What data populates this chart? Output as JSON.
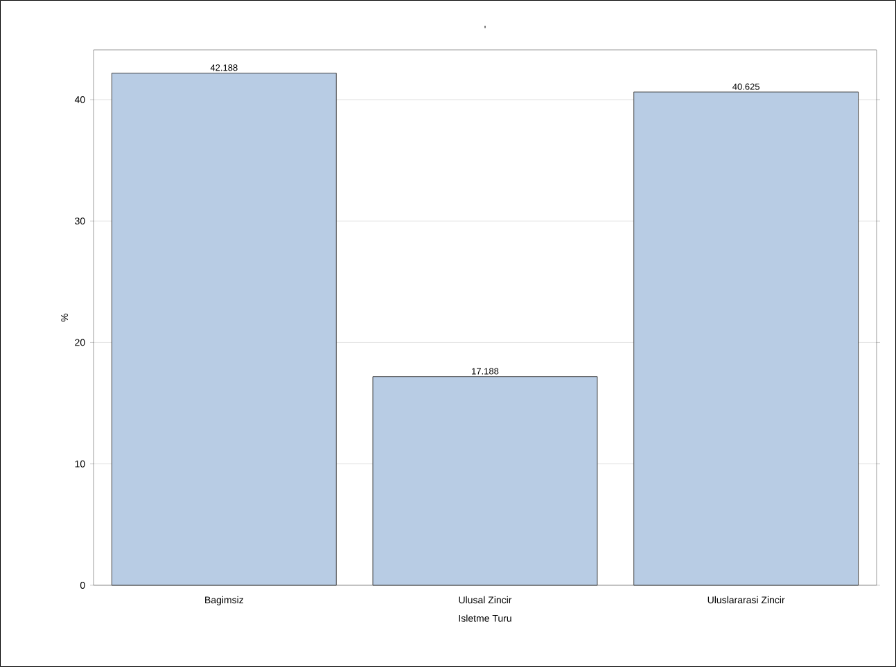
{
  "chart_data": {
    "type": "bar",
    "title": "'",
    "xlabel": "Isletme Turu",
    "ylabel": "%",
    "categories": [
      "Bagimsiz",
      "Ulusal Zincir",
      "Uluslararasi Zincir"
    ],
    "values": [
      42.188,
      17.188,
      40.625
    ],
    "color": "#b8cce4",
    "ylim": [
      0,
      44.1
    ],
    "yticks": [
      0,
      10,
      20,
      30,
      40
    ],
    "grid": "y",
    "data_labels": true
  }
}
